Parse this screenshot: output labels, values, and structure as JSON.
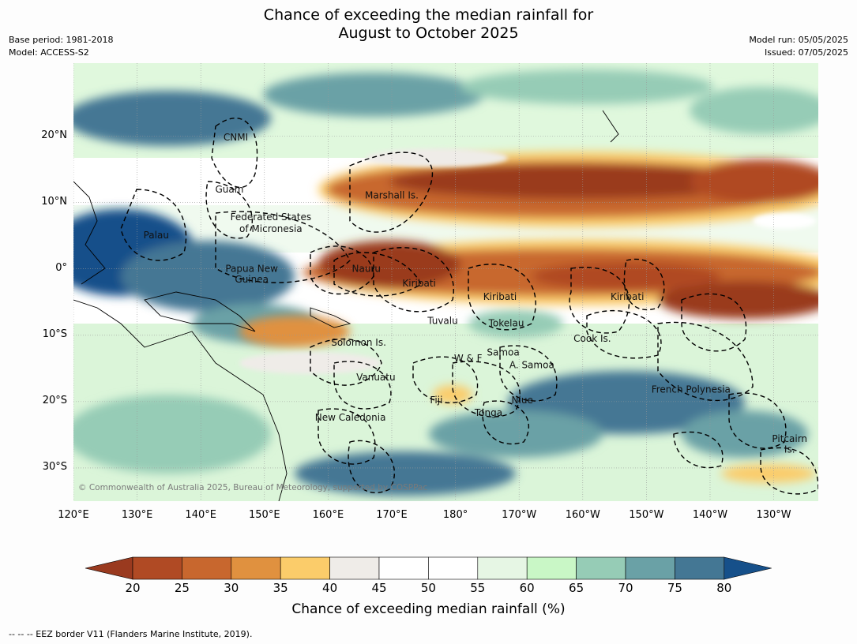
{
  "title": [
    "Chance of exceeding the median rainfall for",
    "August to October 2025"
  ],
  "meta_left": [
    "Base period: 1981-2018",
    "Model: ACCESS-S2"
  ],
  "meta_right": [
    "Model run: 05/05/2025",
    "Issued: 07/05/2025"
  ],
  "map": {
    "lon_range": [
      120,
      237
    ],
    "lat_range": [
      -35,
      31
    ],
    "x_ticks": [
      "120°E",
      "130°E",
      "140°E",
      "150°E",
      "160°E",
      "170°E",
      "180°",
      "170°W",
      "160°W",
      "150°W",
      "140°W",
      "130°W"
    ],
    "y_ticks": [
      {
        "label": "20°N",
        "lat": 20
      },
      {
        "label": "10°N",
        "lat": 10
      },
      {
        "label": "0°",
        "lat": 0
      },
      {
        "label": "10°S",
        "lat": -10
      },
      {
        "label": "20°S",
        "lat": -20
      },
      {
        "label": "30°S",
        "lat": -30
      }
    ],
    "regions": [
      {
        "name": "CNMI",
        "lon": 145.5,
        "lat": 19.8
      },
      {
        "name": "Guam",
        "lon": 144.5,
        "lat": 12.0
      },
      {
        "name": "Marshall Is.",
        "lon": 170.0,
        "lat": 11.1
      },
      {
        "name": "Federated States",
        "lon": 151.0,
        "lat": 7.8
      },
      {
        "name": "of Micronesia",
        "lon": 151.0,
        "lat": 6.0
      },
      {
        "name": "Palau",
        "lon": 133.0,
        "lat": 5.1
      },
      {
        "name": "Papua New",
        "lon": 148.0,
        "lat": 0.0
      },
      {
        "name": "Guinea",
        "lon": 148.0,
        "lat": -1.6
      },
      {
        "name": "Nauru",
        "lon": 166.0,
        "lat": 0.0
      },
      {
        "name": "Kiribati",
        "lon": 174.3,
        "lat": -2.2
      },
      {
        "name": "Kiribati",
        "lon": 187.0,
        "lat": -4.2
      },
      {
        "name": "Kiribati",
        "lon": 207.0,
        "lat": -4.2
      },
      {
        "name": "Tuvalu",
        "lon": 178.0,
        "lat": -7.8
      },
      {
        "name": "Tokelau",
        "lon": 188.0,
        "lat": -8.2
      },
      {
        "name": "Solomon Is.",
        "lon": 164.8,
        "lat": -11.1
      },
      {
        "name": "Cook Is.",
        "lon": 201.5,
        "lat": -10.5
      },
      {
        "name": "Samoa",
        "lon": 187.5,
        "lat": -12.6
      },
      {
        "name": "W & F",
        "lon": 182.0,
        "lat": -13.5
      },
      {
        "name": "A. Samoa",
        "lon": 192.0,
        "lat": -14.5
      },
      {
        "name": "Vanuatu",
        "lon": 167.5,
        "lat": -16.3
      },
      {
        "name": "French Polynesia",
        "lon": 217.0,
        "lat": -18.2
      },
      {
        "name": "Fiji",
        "lon": 177.0,
        "lat": -19.8
      },
      {
        "name": "Niue",
        "lon": 190.5,
        "lat": -19.8
      },
      {
        "name": "Tonga",
        "lon": 185.2,
        "lat": -21.7
      },
      {
        "name": "New Caledonia",
        "lon": 163.5,
        "lat": -22.4
      },
      {
        "name": "Pitcairn",
        "lon": 232.5,
        "lat": -25.6
      },
      {
        "name": "Is.",
        "lon": 232.5,
        "lat": -27.2
      }
    ],
    "copyright": "© Commonwealth of Australia 2025, Bureau of Meteorology, supported by COSPPac"
  },
  "colorbar": {
    "title": "Chance of exceeding median rainfall (%)",
    "ticks": [
      "20",
      "25",
      "30",
      "35",
      "40",
      "45",
      "50",
      "55",
      "60",
      "65",
      "70",
      "75",
      "80"
    ],
    "colors": [
      "#9a3a1f",
      "#b04a24",
      "#c8672e",
      "#e0913f",
      "#fbcc6a",
      "#efece8",
      "#ffffff",
      "#ffffff",
      "#e6f6e4",
      "#c9f7c6",
      "#96ccb6",
      "#6aa1a6",
      "#447794",
      "#16508a"
    ]
  },
  "footnote": "--  --  -- EEZ border V11 (Flanders Marine Institute, 2019)."
}
